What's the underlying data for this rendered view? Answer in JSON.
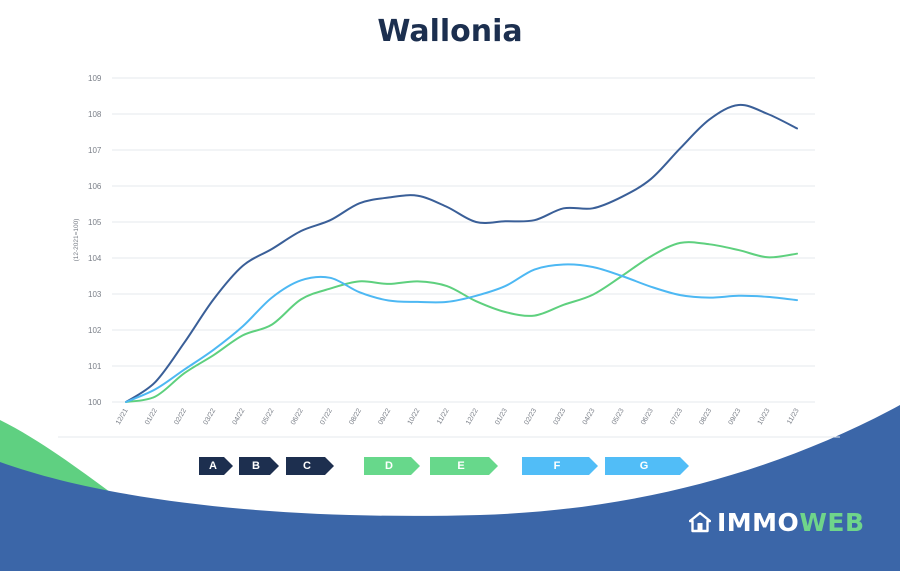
{
  "title": "Wallonia",
  "chart_data": {
    "type": "line",
    "title": "Wallonia",
    "ylabel": "(12-2021=100)",
    "xlabel": "",
    "ylim": [
      100,
      109
    ],
    "yticks": [
      "100",
      "101",
      "102",
      "103",
      "104",
      "105",
      "106",
      "107",
      "108",
      "109"
    ],
    "x": [
      "12/21",
      "01/22",
      "02/22",
      "03/22",
      "04/22",
      "05/22",
      "06/22",
      "07/22",
      "08/22",
      "09/22",
      "10/22",
      "11/22",
      "12/22",
      "01/23",
      "02/23",
      "03/23",
      "04/23",
      "05/23",
      "06/23",
      "07/23",
      "08/23",
      "09/23",
      "10/23",
      "11/23"
    ],
    "grid": true,
    "series": [
      {
        "color": "#3a5f98",
        "values": [
          100,
          100.55,
          101.65,
          102.85,
          103.78,
          104.25,
          104.75,
          105.05,
          105.52,
          105.68,
          105.73,
          105.42,
          105.0,
          105.02,
          105.05,
          105.38,
          105.38,
          105.7,
          106.2,
          107.05,
          107.85,
          108.25,
          108.0,
          107.6
        ]
      },
      {
        "color": "#5ed07e",
        "values": [
          100,
          100.15,
          100.8,
          101.3,
          101.85,
          102.15,
          102.85,
          103.15,
          103.35,
          103.28,
          103.35,
          103.22,
          102.8,
          102.5,
          102.4,
          102.7,
          102.98,
          103.5,
          104.05,
          104.42,
          104.38,
          104.22,
          104.02,
          104.12
        ]
      },
      {
        "color": "#4db8f3",
        "values": [
          100,
          100.35,
          100.9,
          101.45,
          102.1,
          102.9,
          103.38,
          103.45,
          103.05,
          102.82,
          102.78,
          102.78,
          102.95,
          103.22,
          103.68,
          103.82,
          103.75,
          103.5,
          103.2,
          102.97,
          102.9,
          102.95,
          102.92,
          102.83
        ]
      }
    ]
  },
  "legend": [
    {
      "label": "A",
      "color": "#1d2f4f",
      "text_color": "#ffffff"
    },
    {
      "label": "B",
      "color": "#1d2f4f",
      "text_color": "#ffffff"
    },
    {
      "label": "C",
      "color": "#1d2f4f",
      "text_color": "#ffffff"
    },
    {
      "label": "D",
      "color": "#67d88b",
      "text_color": "#ffffff"
    },
    {
      "label": "E",
      "color": "#67d88b",
      "text_color": "#ffffff"
    },
    {
      "label": "F",
      "color": "#51bdf7",
      "text_color": "#ffffff"
    },
    {
      "label": "G",
      "color": "#51bdf7",
      "text_color": "#ffffff"
    }
  ],
  "footer": {
    "bg": "#3b66a8",
    "accent": "#5fd081"
  },
  "logo": {
    "icon": "house-icon",
    "part1": "IMMO",
    "part2": "WEB"
  }
}
